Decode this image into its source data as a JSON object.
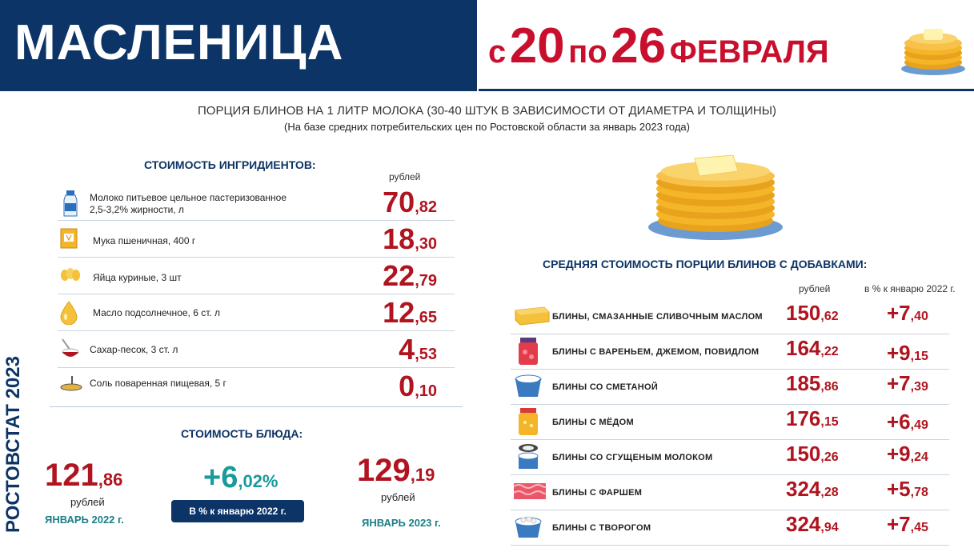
{
  "header": {
    "title": "МАСЛЕНИЦА",
    "date_from_word": "с",
    "date_from": "20",
    "date_to_word": "по",
    "date_to": "26",
    "month": "ФЕВРАЛЯ"
  },
  "subtitle": "ПОРЦИЯ БЛИНОВ НА 1 ЛИТР МОЛОКА (30-40 ШТУК  В ЗАВИСИМОСТИ ОТ ДИАМЕТРА И ТОЛЩИНЫ)",
  "subnote": "(На базе средних потребительских цен по Ростовской области за январь 2023 года)",
  "vertical_label": "РОСТОВСТАТ 2023",
  "ingredients": {
    "title": "СТОИМОСТЬ ИНГРИДИЕНТОВ:",
    "unit": "рублей",
    "items": [
      {
        "name_line1": "Молоко питьевое цельное пастеризованное",
        "name_line2": "2,5-3,2% жирности, л",
        "int": "70",
        "dec": ",82",
        "icon": "milk-bottle-icon"
      },
      {
        "name_line1": "Мука пшеничная, 400 г",
        "name_line2": "",
        "int": "18",
        "dec": ",30",
        "icon": "flour-bag-icon"
      },
      {
        "name_line1": "Яйца куриные, 3 шт",
        "name_line2": "",
        "int": "22",
        "dec": ",79",
        "icon": "eggs-icon"
      },
      {
        "name_line1": "Масло подсолнечное, 6 ст. л",
        "name_line2": "",
        "int": "12",
        "dec": ",65",
        "icon": "oil-drop-icon"
      },
      {
        "name_line1": "Сахар-песок, 3 ст. л",
        "name_line2": "",
        "int": "4",
        "dec": ",53",
        "icon": "sugar-bowl-icon"
      },
      {
        "name_line1": "Соль поваренная пищевая, 5 г",
        "name_line2": "",
        "int": "0",
        "dec": ",10",
        "icon": "salt-spoon-icon"
      }
    ]
  },
  "dish": {
    "title": "СТОИМОСТЬ БЛЮДА:",
    "jan2022": {
      "int": "121",
      "dec": ",86",
      "unit": "рублей",
      "label": "ЯНВАРЬ 2022 г."
    },
    "change": {
      "int": "+6",
      "dec": ",02%",
      "badge": "В % к январю 2022 г."
    },
    "jan2023": {
      "int": "129",
      "dec": ",19",
      "unit": "рублей",
      "label": "ЯНВАРЬ 2023 г."
    }
  },
  "additives": {
    "title": "СРЕДНЯЯ СТОИМОСТЬ ПОРЦИИ БЛИНОВ С ДОБАВКАМИ:",
    "col_price": "рублей",
    "col_pct": "в % к январю 2022 г.",
    "items": [
      {
        "name": "БЛИНЫ, СМАЗАННЫЕ СЛИВОЧНЫМ МАСЛОМ",
        "int": "150",
        "dec": ",62",
        "pct_int": "+7",
        "pct_dec": ",40",
        "icon": "butter-icon"
      },
      {
        "name": "БЛИНЫ С ВАРЕНЬЕМ, ДЖЕМОМ, ПОВИДЛОМ",
        "int": "164",
        "dec": ",22",
        "pct_int": "+9",
        "pct_dec": ",15",
        "icon": "jam-jar-icon"
      },
      {
        "name": "БЛИНЫ СО СМЕТАНОЙ",
        "int": "185",
        "dec": ",86",
        "pct_int": "+7",
        "pct_dec": ",39",
        "icon": "sour-cream-icon"
      },
      {
        "name": "БЛИНЫ С МЁДОМ",
        "int": "176",
        "dec": ",15",
        "pct_int": "+6",
        "pct_dec": ",49",
        "icon": "honey-jar-icon"
      },
      {
        "name": "БЛИНЫ СО СГУЩЕНЫМ МОЛОКОМ",
        "int": "150",
        "dec": ",26",
        "pct_int": "+9",
        "pct_dec": ",24",
        "icon": "condensed-milk-can-icon"
      },
      {
        "name": "БЛИНЫ С ФАРШЕМ",
        "int": "324",
        "dec": ",28",
        "pct_int": "+5",
        "pct_dec": ",78",
        "icon": "minced-meat-icon"
      },
      {
        "name": "БЛИНЫ С ТВОРОГОМ",
        "int": "324",
        "dec": ",94",
        "pct_int": "+7",
        "pct_dec": ",45",
        "icon": "cottage-cheese-icon"
      }
    ]
  },
  "colors": {
    "navy": "#0d3466",
    "red": "#b0141f",
    "teal": "#1a7f86",
    "pancake": "#f5b528"
  }
}
